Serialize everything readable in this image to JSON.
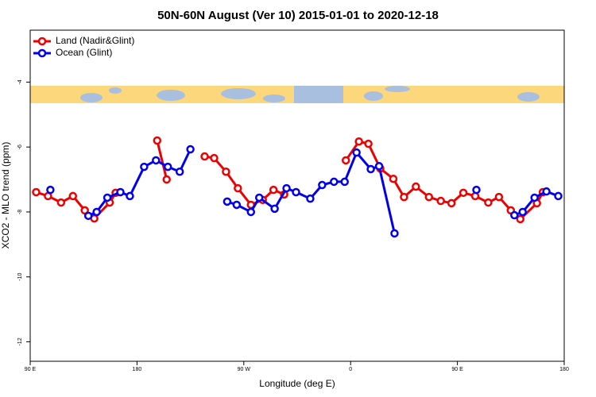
{
  "chart_data": {
    "type": "line",
    "title": "50N-60N August (Ver 10)   2015-01-01 to 2020-12-18",
    "x_label": "Longitude (deg E)",
    "y_label": "XCO2 - MLO trend (ppm)",
    "xlim": [
      90,
      540
    ],
    "ylim": [
      -12.6,
      -2.4
    ],
    "xticks": [
      {
        "value": 90,
        "label": "90 E"
      },
      180,
      {
        "value": 270,
        "label": "90 W"
      },
      {
        "value": 360,
        "label": "0"
      },
      {
        "value": 450,
        "label": "90 E"
      },
      {
        "value": 540,
        "label": "180"
      }
    ],
    "yticks": [
      -4,
      -6,
      -8,
      -10,
      -12
    ],
    "legend": "top-left",
    "series": [
      {
        "name": "Land (Nadir&Glint)",
        "color": "#ee0000",
        "x": [
          95,
          105,
          116,
          126,
          136,
          144,
          157,
          162,
          null,
          197,
          205,
          null,
          237,
          245,
          255,
          265,
          276,
          286,
          295,
          304,
          null,
          356,
          367,
          375,
          385,
          396,
          405,
          415,
          426,
          436,
          445,
          455,
          465,
          476,
          485,
          495,
          503,
          517,
          522
        ],
        "values": [
          -7.39,
          -7.51,
          -7.71,
          -7.51,
          -7.95,
          -8.2,
          -7.71,
          -7.41,
          null,
          -5.8,
          -7.0,
          null,
          -6.29,
          -6.34,
          -6.76,
          -7.27,
          -7.78,
          -7.63,
          -7.32,
          -7.46,
          null,
          -6.41,
          -5.83,
          -5.9,
          -6.66,
          -6.98,
          -7.54,
          -7.22,
          -7.54,
          -7.66,
          -7.73,
          -7.41,
          -7.51,
          -7.71,
          -7.54,
          -7.95,
          -8.22,
          -7.73,
          -7.39
        ]
      },
      {
        "name": "Ocean (Glint)",
        "color": "#0000ee",
        "x": [
          107,
          null,
          139,
          146,
          155,
          166,
          174,
          186,
          196,
          206,
          216,
          225,
          null,
          256,
          264,
          276,
          283,
          296,
          306,
          314,
          326,
          336,
          346,
          355,
          365,
          377,
          384,
          397,
          null,
          466,
          null,
          498,
          505,
          515,
          525,
          535
        ],
        "values": [
          -7.32,
          null,
          -8.12,
          -8.0,
          -7.56,
          -7.39,
          -7.51,
          -6.61,
          -6.41,
          -6.61,
          -6.76,
          -6.07,
          null,
          -7.68,
          -7.78,
          -8.0,
          -7.56,
          -7.9,
          -7.27,
          -7.39,
          -7.59,
          -7.17,
          -7.07,
          -7.07,
          -6.17,
          -6.68,
          -6.59,
          -8.66,
          null,
          -7.32,
          null,
          -8.1,
          -8.0,
          -7.56,
          -7.37,
          -7.51
        ]
      }
    ]
  }
}
